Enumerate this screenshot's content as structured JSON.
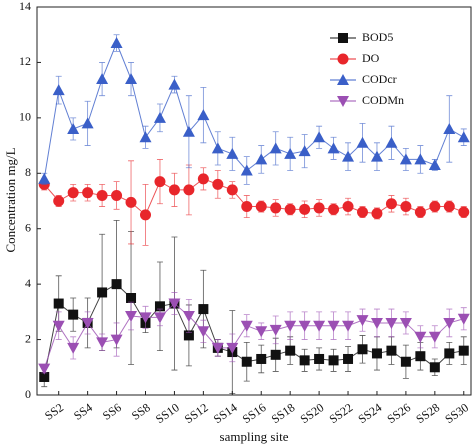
{
  "chart_data": {
    "type": "line",
    "ylabel": "Concentration mg/L",
    "xlabel": "sampling site",
    "categories": [
      null,
      "SS2",
      null,
      "SS4",
      null,
      "SS6",
      null,
      "SS8",
      null,
      "SS10",
      null,
      "SS12",
      null,
      "SS14",
      null,
      "SS16",
      null,
      "SS18",
      null,
      "SS20",
      null,
      "SS22",
      null,
      "SS24",
      null,
      "SS26",
      null,
      "SS28",
      null,
      "SS30"
    ],
    "ylim": [
      0,
      14
    ],
    "yticks": [
      0,
      2,
      4,
      6,
      8,
      10,
      12,
      14
    ],
    "grid": false,
    "legend": "top-right",
    "series": [
      {
        "name": "BOD5",
        "color": "#111111",
        "marker": "square",
        "values": [
          0.65,
          3.3,
          2.9,
          2.6,
          3.7,
          4.0,
          3.5,
          2.6,
          3.2,
          3.3,
          2.15,
          3.1,
          1.7,
          1.55,
          1.2,
          1.3,
          1.45,
          1.6,
          1.25,
          1.3,
          1.25,
          1.3,
          1.65,
          1.5,
          1.6,
          1.2,
          1.4,
          1.0,
          1.5,
          1.6
        ],
        "errors": [
          0.35,
          1.0,
          0.6,
          0.9,
          2.1,
          2.3,
          2.4,
          0.35,
          1.6,
          2.4,
          1.1,
          1.4,
          0.3,
          1.5,
          0.7,
          0.5,
          0.6,
          0.5,
          0.4,
          0.4,
          0.4,
          0.45,
          0.5,
          0.6,
          0.5,
          0.6,
          0.5,
          0.3,
          0.4,
          0.5
        ]
      },
      {
        "name": "DO",
        "color": "#e8262b",
        "marker": "circle",
        "values": [
          7.6,
          7.0,
          7.3,
          7.3,
          7.2,
          7.2,
          6.95,
          6.5,
          7.7,
          7.4,
          7.4,
          7.8,
          7.6,
          7.4,
          6.8,
          6.8,
          6.75,
          6.7,
          6.7,
          6.75,
          6.7,
          6.8,
          6.6,
          6.55,
          6.9,
          6.8,
          6.6,
          6.8,
          6.8,
          6.6
        ],
        "errors": [
          0.2,
          0.2,
          0.3,
          0.3,
          0.4,
          0.5,
          1.5,
          1.1,
          0.8,
          0.6,
          0.9,
          0.4,
          0.5,
          0.3,
          0.4,
          0.2,
          0.3,
          0.2,
          0.3,
          0.3,
          0.2,
          0.3,
          0.2,
          0.2,
          0.3,
          0.3,
          0.2,
          0.2,
          0.2,
          0.2
        ]
      },
      {
        "name": "CODcr",
        "color": "#3a5fc8",
        "marker": "triangle",
        "values": [
          7.8,
          11.0,
          9.6,
          9.8,
          11.4,
          12.7,
          11.4,
          9.3,
          10.0,
          11.2,
          9.5,
          10.1,
          8.9,
          8.7,
          8.1,
          8.5,
          8.9,
          8.7,
          8.8,
          9.3,
          8.9,
          8.6,
          9.1,
          8.6,
          9.1,
          8.5,
          8.5,
          8.3,
          9.6,
          9.3
        ],
        "errors": [
          0.2,
          0.5,
          0.4,
          0.8,
          0.6,
          0.3,
          0.6,
          0.4,
          0.5,
          0.3,
          1.3,
          1.0,
          0.6,
          0.6,
          0.5,
          0.5,
          0.6,
          0.6,
          0.6,
          0.4,
          0.4,
          0.5,
          0.7,
          0.5,
          0.6,
          0.4,
          0.5,
          0.2,
          1.2,
          0.3
        ]
      },
      {
        "name": "CODMn",
        "color": "#9b4fb3",
        "marker": "triangle-down",
        "values": [
          0.95,
          2.5,
          1.7,
          2.6,
          1.9,
          2.0,
          2.85,
          2.8,
          2.8,
          3.3,
          2.85,
          2.3,
          1.7,
          1.7,
          2.5,
          2.3,
          2.35,
          2.5,
          2.5,
          2.5,
          2.5,
          2.5,
          2.7,
          2.6,
          2.6,
          2.6,
          2.1,
          2.1,
          2.6,
          2.75
        ],
        "errors": [
          0.15,
          0.5,
          0.4,
          0.4,
          0.3,
          0.6,
          0.5,
          0.4,
          0.3,
          0.4,
          0.6,
          0.4,
          0.3,
          0.5,
          0.4,
          0.3,
          0.5,
          0.5,
          0.5,
          0.5,
          0.5,
          0.5,
          0.4,
          0.5,
          0.5,
          0.4,
          0.4,
          0.4,
          0.5,
          0.4
        ]
      }
    ]
  }
}
